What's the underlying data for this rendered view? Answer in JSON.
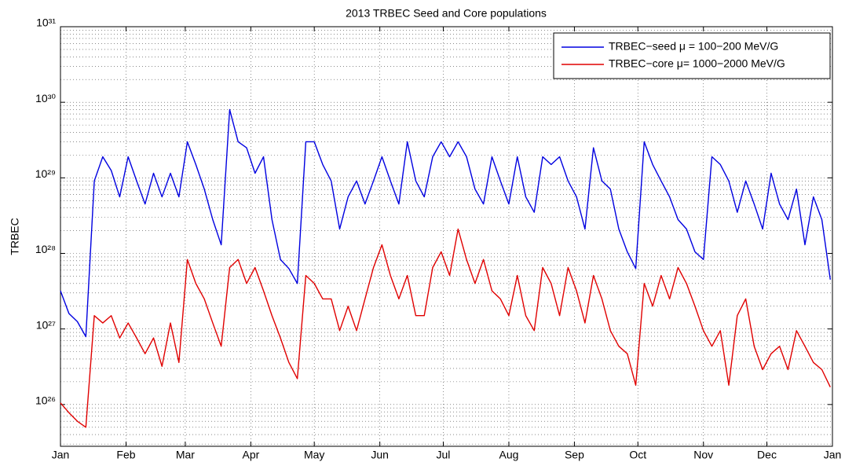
{
  "chart_data": {
    "type": "line",
    "title": "2013 TRBEC Seed and Core populations",
    "ylabel": "TRBEC",
    "yscale": "log",
    "grid": true,
    "minor_grid": true,
    "legend": "upper right",
    "xlim": [
      0,
      365
    ],
    "xticks": [
      {
        "value": 0,
        "label": "Jan"
      },
      {
        "value": 31,
        "label": "Feb"
      },
      {
        "value": 59,
        "label": "Mar"
      },
      {
        "value": 90,
        "label": "Apr"
      },
      {
        "value": 120,
        "label": "May"
      },
      {
        "value": 151,
        "label": "Jun"
      },
      {
        "value": 181,
        "label": "Jul"
      },
      {
        "value": 212,
        "label": "Aug"
      },
      {
        "value": 243,
        "label": "Sep"
      },
      {
        "value": 273,
        "label": "Oct"
      },
      {
        "value": 304,
        "label": "Nov"
      },
      {
        "value": 334,
        "label": "Dec"
      },
      {
        "value": 365,
        "label": "Jan"
      }
    ],
    "ylim": [
      2.8e+25,
      1e+31
    ],
    "yticks": [
      {
        "value": 1e+26,
        "label": "10²⁶"
      },
      {
        "value": 1e+27,
        "label": "10²⁷"
      },
      {
        "value": 1e+28,
        "label": "10²⁸"
      },
      {
        "value": 1e+29,
        "label": "10²⁹"
      },
      {
        "value": 1e+30,
        "label": "10³⁰"
      },
      {
        "value": 1e+31,
        "label": "10³¹"
      }
    ],
    "x": [
      0,
      4,
      8,
      12,
      16,
      20,
      24,
      28,
      32,
      36,
      40,
      44,
      48,
      52,
      56,
      60,
      64,
      68,
      72,
      76,
      80,
      84,
      88,
      92,
      96,
      100,
      104,
      108,
      112,
      116,
      120,
      124,
      128,
      132,
      136,
      140,
      144,
      148,
      152,
      156,
      160,
      164,
      168,
      172,
      176,
      180,
      184,
      188,
      192,
      196,
      200,
      204,
      208,
      212,
      216,
      220,
      224,
      228,
      232,
      236,
      240,
      244,
      248,
      252,
      256,
      260,
      264,
      268,
      272,
      276,
      280,
      284,
      288,
      292,
      296,
      300,
      304,
      308,
      312,
      316,
      320,
      324,
      328,
      332,
      336,
      340,
      344,
      348,
      352,
      356,
      360,
      364
    ],
    "series": [
      {
        "name": "TRBEC−seed μ = 100−200 MeV/G",
        "color": "#0000e0",
        "values": [
          3.2e+27,
          1.6e+27,
          1.25e+27,
          7.9e+26,
          9.1e+28,
          1.9e+29,
          1.25e+29,
          5.6e+28,
          1.9e+29,
          9.1e+28,
          4.5e+28,
          1.15e+29,
          5.6e+28,
          1.15e+29,
          5.6e+28,
          3e+29,
          1.5e+29,
          7.1e+28,
          2.8e+28,
          1.3e+28,
          8e+29,
          3e+29,
          2.5e+29,
          1.15e+29,
          1.9e+29,
          2.8e+28,
          8.3e+27,
          6.3e+27,
          4e+27,
          3e+29,
          3e+29,
          1.5e+29,
          9.1e+28,
          2.1e+28,
          5.6e+28,
          9.1e+28,
          4.5e+28,
          9.1e+28,
          1.9e+29,
          9.1e+28,
          4.5e+28,
          3e+29,
          9.1e+28,
          5.6e+28,
          1.9e+29,
          3e+29,
          1.9e+29,
          3e+29,
          1.9e+29,
          7.1e+28,
          4.5e+28,
          1.9e+29,
          9.1e+28,
          4.5e+28,
          1.9e+29,
          5.6e+28,
          3.5e+28,
          1.9e+29,
          1.5e+29,
          1.9e+29,
          9.1e+28,
          5.6e+28,
          2.1e+28,
          2.5e+29,
          9.1e+28,
          7.1e+28,
          2.1e+28,
          1.05e+28,
          6.3e+27,
          3e+29,
          1.5e+29,
          9.1e+28,
          5.6e+28,
          2.8e+28,
          2.1e+28,
          1.05e+28,
          8.3e+27,
          1.9e+29,
          1.5e+29,
          9.1e+28,
          3.5e+28,
          9.1e+28,
          4.5e+28,
          2.1e+28,
          1.15e+29,
          4.5e+28,
          2.8e+28,
          7.1e+28,
          1.3e+28,
          5.6e+28,
          2.8e+28,
          4.5e+27
        ]
      },
      {
        "name": "TRBEC−core μ= 1000−2000 MeV/G",
        "color": "#e00000",
        "values": [
          1.05e+26,
          7.8e+25,
          6e+25,
          5e+25,
          1.5e+27,
          1.2e+27,
          1.5e+27,
          7.6e+26,
          1.2e+27,
          7.6e+26,
          4.7e+26,
          7.6e+26,
          3.2e+26,
          1.2e+27,
          3.6e+26,
          8.3e+27,
          4e+27,
          2.5e+27,
          1.2e+27,
          5.9e+26,
          6.5e+27,
          8.3e+27,
          4e+27,
          6.5e+27,
          3.2e+27,
          1.5e+27,
          7.6e+26,
          3.6e+26,
          2.2e+26,
          5.1e+27,
          4e+27,
          2.5e+27,
          2.5e+27,
          9.5e+26,
          2e+27,
          9.5e+26,
          2.5e+27,
          6.5e+27,
          1.3e+28,
          5.1e+27,
          2.5e+27,
          5.1e+27,
          1.5e+27,
          1.5e+27,
          6.5e+27,
          1.05e+28,
          5.1e+27,
          2.1e+28,
          8.3e+27,
          4e+27,
          8.3e+27,
          3.2e+27,
          2.5e+27,
          1.5e+27,
          5.1e+27,
          1.5e+27,
          9.5e+26,
          6.5e+27,
          4e+27,
          1.5e+27,
          6.5e+27,
          3.2e+27,
          1.2e+27,
          5.1e+27,
          2.5e+27,
          9.5e+26,
          5.9e+26,
          4.7e+26,
          1.8e+26,
          4e+27,
          2e+27,
          5.1e+27,
          2.5e+27,
          6.5e+27,
          4e+27,
          2e+27,
          9.5e+26,
          5.9e+26,
          9.5e+26,
          1.8e+26,
          1.5e+27,
          2.5e+27,
          5.9e+26,
          2.9e+26,
          4.7e+26,
          5.9e+26,
          2.9e+26,
          9.5e+26,
          5.9e+26,
          3.6e+26,
          2.9e+26,
          1.7e+26
        ]
      }
    ]
  }
}
